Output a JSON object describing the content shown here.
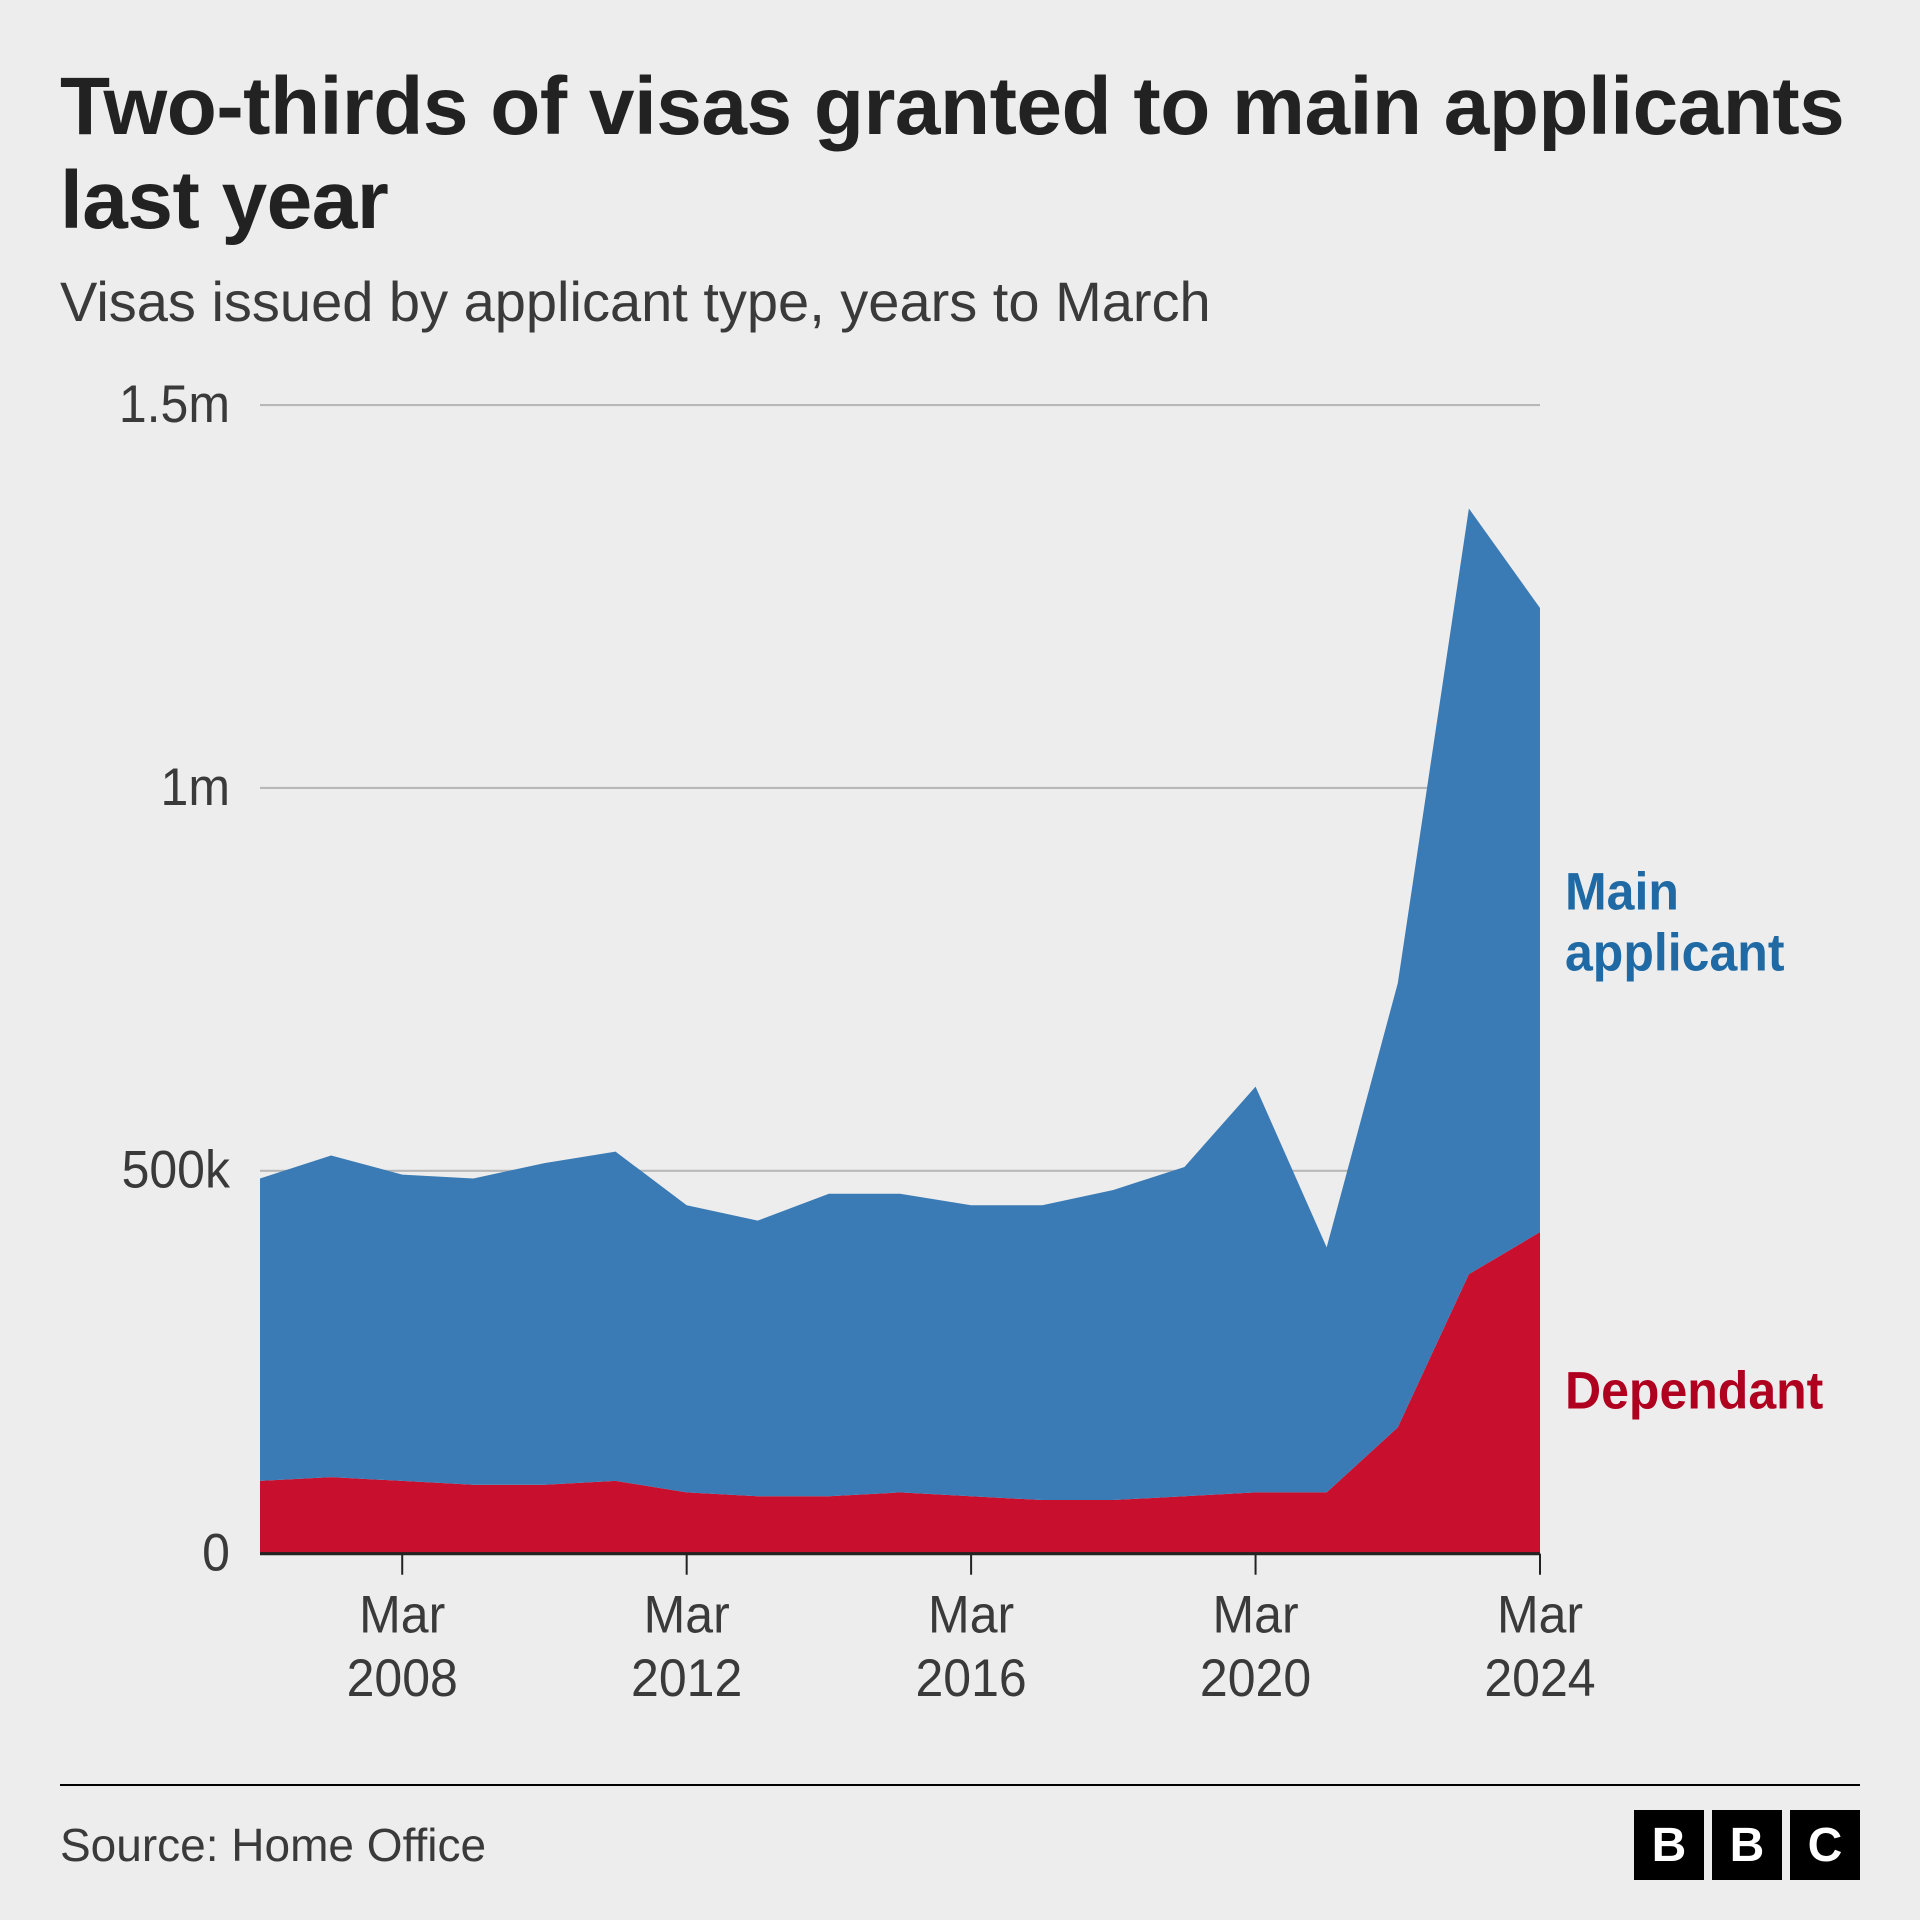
{
  "title": "Two-thirds of visas granted to main applicants last year",
  "subtitle": "Visas issued by applicant type, years to March",
  "source": "Source: Home Office",
  "logo_letters": [
    "B",
    "B",
    "C"
  ],
  "chart": {
    "type": "area-stacked",
    "background_color": "#ededed",
    "grid_color": "#b8b8b8",
    "axis_color": "#222222",
    "ylim": [
      0,
      1500000
    ],
    "yticks": [
      {
        "v": 0,
        "label": "0"
      },
      {
        "v": 500000,
        "label": "500k"
      },
      {
        "v": 1000000,
        "label": "1m"
      },
      {
        "v": 1500000,
        "label": "1.5m"
      }
    ],
    "years": [
      2006,
      2007,
      2008,
      2009,
      2010,
      2011,
      2012,
      2013,
      2014,
      2015,
      2016,
      2017,
      2018,
      2019,
      2020,
      2021,
      2022,
      2023,
      2024
    ],
    "xticks": [
      {
        "year": 2008,
        "line1": "Mar",
        "line2": "2008"
      },
      {
        "year": 2012,
        "line1": "Mar",
        "line2": "2012"
      },
      {
        "year": 2016,
        "line1": "Mar",
        "line2": "2016"
      },
      {
        "year": 2020,
        "line1": "Mar",
        "line2": "2020"
      },
      {
        "year": 2024,
        "line1": "Mar",
        "line2": "2024"
      }
    ],
    "series": [
      {
        "name": "Dependant",
        "color": "#c8102e",
        "label_color": "#b00020",
        "values": [
          95000,
          100000,
          95000,
          90000,
          90000,
          95000,
          80000,
          75000,
          75000,
          80000,
          75000,
          70000,
          70000,
          75000,
          80000,
          80000,
          165000,
          365000,
          420000
        ]
      },
      {
        "name": "Main applicant",
        "color": "#3a7bb5",
        "label_color": "#1f6aa5",
        "values": [
          395000,
          420000,
          400000,
          400000,
          420000,
          430000,
          375000,
          360000,
          395000,
          390000,
          380000,
          385000,
          405000,
          430000,
          530000,
          320000,
          580000,
          1000000,
          815000
        ]
      }
    ],
    "label_fontsize": 50,
    "tick_fontsize": 50,
    "title_fontsize": 82,
    "subtitle_fontsize": 56
  }
}
